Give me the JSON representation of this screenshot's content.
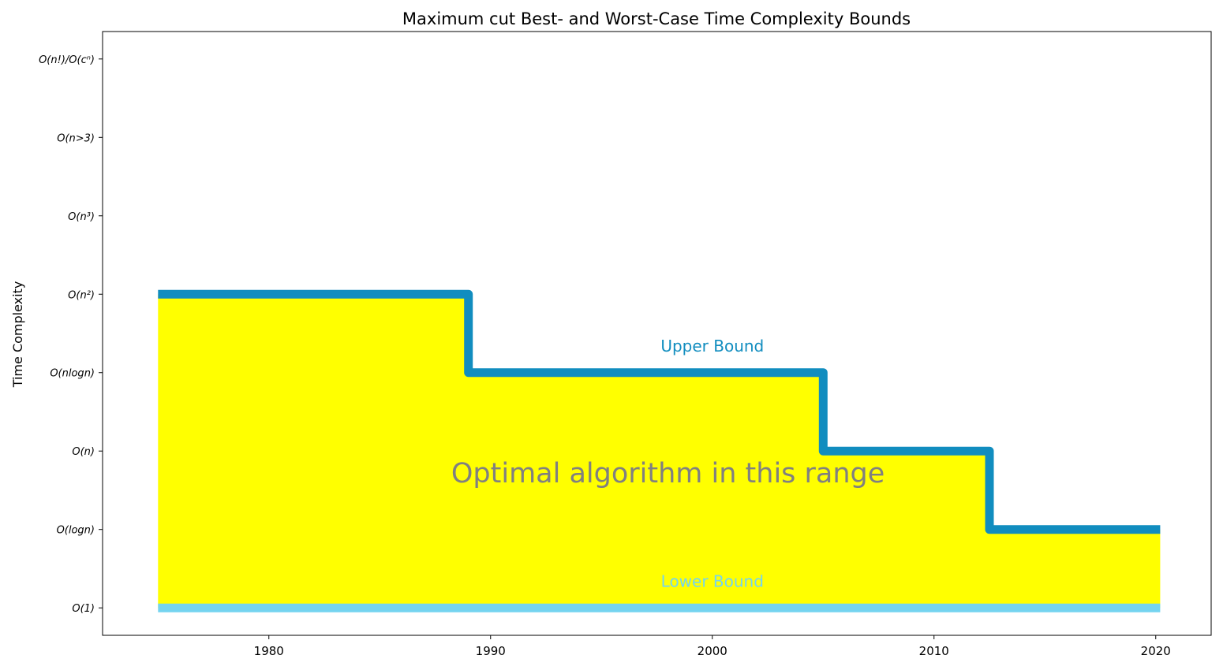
{
  "chart_data": {
    "type": "area",
    "title": "Maximum cut Best- and Worst-Case Time Complexity Bounds",
    "xlabel": "",
    "ylabel": "Time Complexity",
    "xlim": [
      1972.5,
      2022.5
    ],
    "ylim": [
      -0.35,
      7.35
    ],
    "x_ticks": [
      1980,
      1990,
      2000,
      2010,
      2020
    ],
    "y_ticks": [
      {
        "value": 0,
        "label": "O(1)"
      },
      {
        "value": 1,
        "label": "O(logn)"
      },
      {
        "value": 2,
        "label": "O(n)"
      },
      {
        "value": 3,
        "label": "O(nlogn)"
      },
      {
        "value": 4,
        "label": "O(n²)"
      },
      {
        "value": 5,
        "label": "O(n³)"
      },
      {
        "value": 6,
        "label": "O(n>3)"
      },
      {
        "value": 7,
        "label": "O(n!)/O(cⁿ)"
      }
    ],
    "grid": false,
    "series": [
      {
        "name": "Upper Bound",
        "style": "step",
        "color": "#118dbf",
        "points": [
          [
            1975,
            4
          ],
          [
            1989,
            4
          ],
          [
            1989,
            3
          ],
          [
            2005,
            3
          ],
          [
            2005,
            2
          ],
          [
            2012.5,
            2
          ],
          [
            2012.5,
            1
          ],
          [
            2020.2,
            1
          ]
        ]
      },
      {
        "name": "Lower Bound",
        "style": "line",
        "color": "#74d4f0",
        "points": [
          [
            1975,
            0
          ],
          [
            2020.2,
            0
          ]
        ]
      }
    ],
    "fill": {
      "color": "#ffff00",
      "between": [
        "Lower Bound",
        "Upper Bound"
      ]
    },
    "annotations": [
      {
        "text": "Upper Bound",
        "x": 2000,
        "y": 3.27,
        "color": "#118dbf"
      },
      {
        "text": "Lower Bound",
        "x": 2000,
        "y": 0.27,
        "color": "#74d4f0"
      },
      {
        "text": "Optimal algorithm in this range",
        "x": 1998,
        "y": 1.6,
        "color": "#808080"
      }
    ]
  }
}
